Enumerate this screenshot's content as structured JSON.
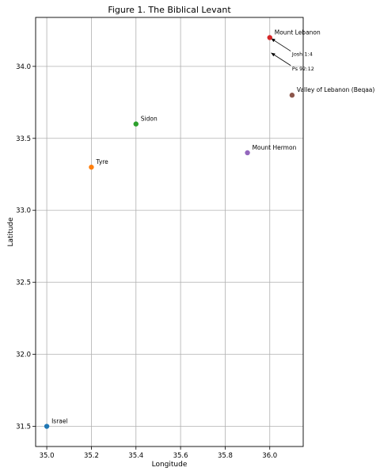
{
  "chart_data": {
    "type": "scatter",
    "title": "Figure 1. The Biblical Levant",
    "xlabel": "Longitude",
    "ylabel": "Latitude",
    "xlim": [
      34.95,
      36.15
    ],
    "ylim": [
      31.36,
      34.34
    ],
    "xticks": [
      "35.0",
      "35.2",
      "35.4",
      "35.6",
      "35.8",
      "36.0"
    ],
    "yticks": [
      "31.5",
      "32.0",
      "32.5",
      "33.0",
      "33.5",
      "34.0"
    ],
    "grid": true,
    "points": [
      {
        "label": "Israel",
        "x": 35.0,
        "y": 31.5,
        "color": "#1f77b4"
      },
      {
        "label": "Tyre",
        "x": 35.2,
        "y": 33.3,
        "color": "#ff7f0e"
      },
      {
        "label": "Sidon",
        "x": 35.4,
        "y": 33.6,
        "color": "#2ca02c"
      },
      {
        "label": "Mount Lebanon",
        "x": 36.0,
        "y": 34.2,
        "color": "#d62728"
      },
      {
        "label": "Mount Hermon",
        "x": 35.9,
        "y": 33.4,
        "color": "#9467bd"
      },
      {
        "label": "Valley of Lebanon (Beqaa)",
        "x": 36.1,
        "y": 33.8,
        "color": "#8c564b"
      }
    ],
    "annotations": [
      {
        "text": "Josh 1:4",
        "x": 36.1,
        "y": 34.1,
        "target_x": 36.0,
        "target_y": 34.2
      },
      {
        "text": "Ps 92:12",
        "x": 36.1,
        "y": 34.0,
        "target_x": 36.0,
        "target_y": 34.1
      }
    ]
  }
}
